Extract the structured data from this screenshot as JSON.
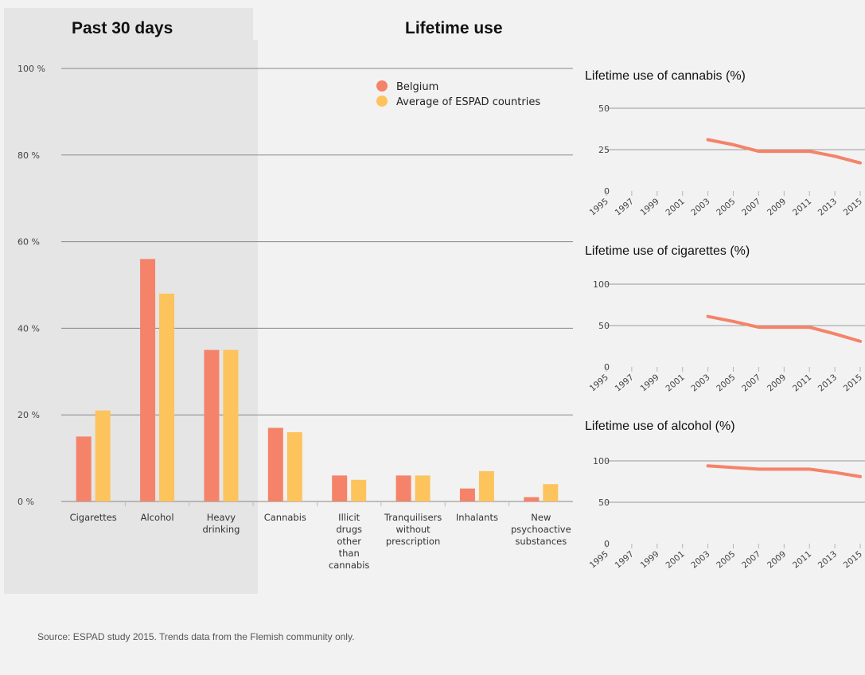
{
  "headings": {
    "past30": "Past 30 days",
    "lifetime": "Lifetime use"
  },
  "source": "Source: ESPAD study 2015. Trends data from the Flemish community only.",
  "colors": {
    "belgium": "#f4836a",
    "espad": "#fdc35c",
    "grid": "#888888",
    "line": "#f4836a"
  },
  "chart_data": [
    {
      "type": "bar",
      "categories": [
        [
          "Cigarettes"
        ],
        [
          "Alcohol"
        ],
        [
          "Heavy",
          "drinking"
        ],
        [
          "Cannabis"
        ],
        [
          "Illicit",
          "drugs",
          "other",
          "than",
          "cannabis"
        ],
        [
          "Tranquilisers",
          "without",
          "prescription"
        ],
        [
          "Inhalants"
        ],
        [
          "New",
          "psychoactive",
          "substances"
        ]
      ],
      "series": [
        {
          "name": "Belgium",
          "values": [
            15,
            56,
            35,
            17,
            6,
            6,
            3,
            1
          ]
        },
        {
          "name": "Average of ESPAD countries",
          "values": [
            21,
            48,
            35,
            16,
            5,
            6,
            7,
            4
          ]
        }
      ],
      "ylim": [
        0,
        100
      ],
      "yticks": [
        0,
        20,
        40,
        60,
        80,
        100
      ],
      "ytick_labels": [
        "0 %",
        "20 %",
        "40 %",
        "60 %",
        "80 %",
        "100 %"
      ],
      "legend_position": "top-right"
    },
    {
      "type": "line",
      "title": "Lifetime use of cannabis (%)",
      "x": [
        "1995",
        "1997",
        "1999",
        "2001",
        "2003",
        "2005",
        "2007",
        "2009",
        "2011",
        "2013",
        "2015"
      ],
      "y": [
        null,
        null,
        null,
        null,
        31,
        28,
        24,
        24,
        24,
        21,
        17
      ],
      "ylim": [
        0,
        50
      ],
      "yticks": [
        0,
        25,
        50
      ]
    },
    {
      "type": "line",
      "title": "Lifetime use of cigarettes (%)",
      "x": [
        "1995",
        "1997",
        "1999",
        "2001",
        "2003",
        "2005",
        "2007",
        "2009",
        "2011",
        "2013",
        "2015"
      ],
      "y": [
        null,
        null,
        null,
        null,
        61,
        55,
        48,
        48,
        48,
        40,
        31
      ],
      "ylim": [
        0,
        100
      ],
      "yticks": [
        0,
        50,
        100
      ]
    },
    {
      "type": "line",
      "title": "Lifetime use of alcohol (%)",
      "x": [
        "1995",
        "1997",
        "1999",
        "2001",
        "2003",
        "2005",
        "2007",
        "2009",
        "2011",
        "2013",
        "2015"
      ],
      "y": [
        null,
        null,
        null,
        null,
        94,
        92,
        90,
        90,
        90,
        86,
        81
      ],
      "ylim": [
        0,
        100
      ],
      "yticks": [
        0,
        50,
        100
      ]
    }
  ]
}
